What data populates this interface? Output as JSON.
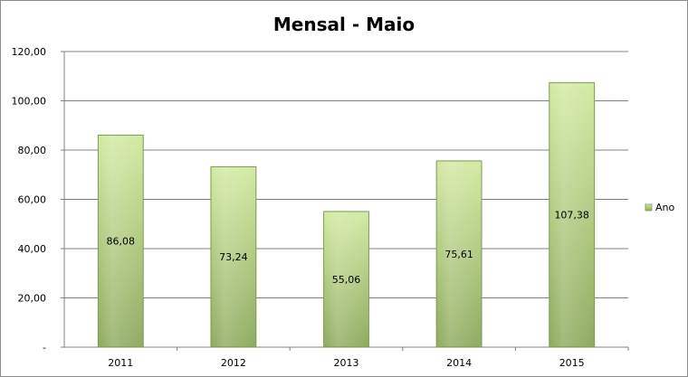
{
  "chart_data": {
    "type": "bar",
    "title": "Mensal - Maio",
    "categories": [
      "2011",
      "2012",
      "2013",
      "2014",
      "2015"
    ],
    "series": [
      {
        "name": "Ano",
        "values": [
          86.08,
          73.24,
          55.06,
          75.61,
          107.38
        ]
      }
    ],
    "data_labels": [
      "86,08",
      "73,24",
      "55,06",
      "75,61",
      "107,38"
    ],
    "y_tick_labels": [
      "-",
      "20,00",
      "40,00",
      "60,00",
      "80,00",
      "100,00",
      "120,00"
    ],
    "ylim": [
      0,
      120
    ],
    "grid": true,
    "legend_position": "right",
    "colors": {
      "bar_top": "#d3eaa4",
      "bar_bottom": "#8fab60",
      "bar_edge": "#7e9a52",
      "grid": "#808080"
    }
  }
}
